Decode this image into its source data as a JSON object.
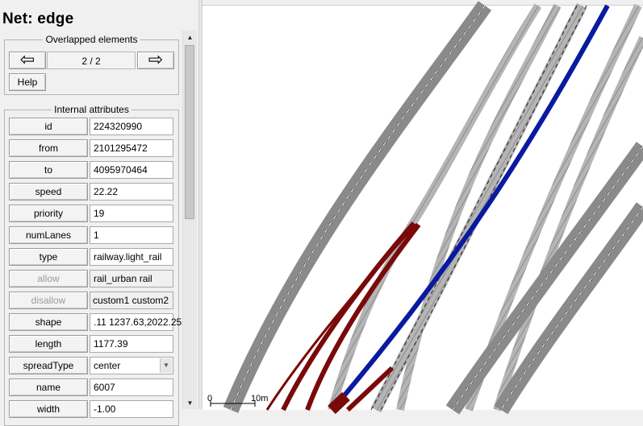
{
  "panel": {
    "title": "Net: edge",
    "overlapped": {
      "legend": "Overlapped elements",
      "prev_icon": "left-arrow-icon",
      "next_icon": "right-arrow-icon",
      "prev_glyph": "⇦",
      "next_glyph": "⇨",
      "counter": "2 / 2",
      "help_label": "Help"
    },
    "internal": {
      "legend": "Internal attributes",
      "rows": [
        {
          "label": "id",
          "value": "224320990"
        },
        {
          "label": "from",
          "value": "2101295472"
        },
        {
          "label": "to",
          "value": "4095970464"
        },
        {
          "label": "speed",
          "value": "22.22"
        },
        {
          "label": "priority",
          "value": "19"
        },
        {
          "label": "numLanes",
          "value": "1"
        },
        {
          "label": "type",
          "value": "railway.light_rail"
        },
        {
          "label": "allow",
          "value": "rail_urban rail"
        },
        {
          "label": "disallow",
          "value": "custom1 custom2"
        },
        {
          "label": "shape",
          "value": ".11 1237.63,2022.25"
        },
        {
          "label": "length",
          "value": "1177.39"
        },
        {
          "label": "spreadType",
          "value": "center"
        },
        {
          "label": "name",
          "value": "6007"
        },
        {
          "label": "width",
          "value": "-1.00"
        }
      ]
    }
  },
  "view": {
    "scale_zero": "0",
    "scale_ten": "10m",
    "colors": {
      "road_gray": "#8a8a8a",
      "rail_light": "#a8a8a8",
      "selected_blue": "#0a1aa0",
      "rail_red": "#7a0a0a"
    }
  }
}
